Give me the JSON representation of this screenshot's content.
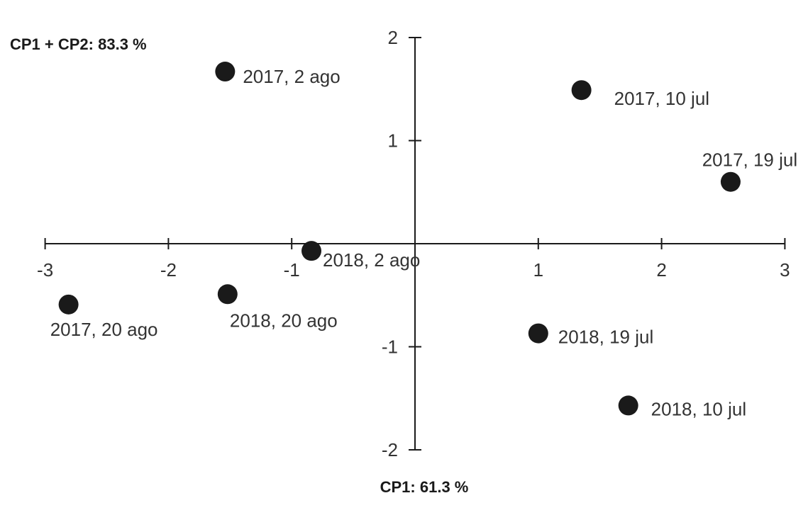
{
  "chart_data": {
    "type": "scatter",
    "title": "",
    "xlabel": "CP1: 61.3 %",
    "ylabel": "CP1 + CP2: 83.3 %",
    "xlim": [
      -3,
      3
    ],
    "ylim": [
      -2,
      2
    ],
    "x_ticks": [
      "-3",
      "-2",
      "-1",
      "1",
      "2",
      "3"
    ],
    "y_ticks": [
      "2",
      "1",
      "-1",
      "-2"
    ],
    "grid": false,
    "legend": "none",
    "point_color": "#1a1a1a",
    "points": [
      {
        "label": "2017, 2 ago",
        "x": -1.54,
        "y": 1.67
      },
      {
        "label": "2017, 10 jul",
        "x": 1.35,
        "y": 1.49
      },
      {
        "label": "2017, 19 jul",
        "x": 2.56,
        "y": 0.6
      },
      {
        "label": "2018, 2 ago",
        "x": -0.84,
        "y": -0.07
      },
      {
        "label": "2017, 20 ago",
        "x": -2.81,
        "y": -0.59
      },
      {
        "label": "2018, 20 ago",
        "x": -1.52,
        "y": -0.49
      },
      {
        "label": "2018, 19 jul",
        "x": 1.0,
        "y": -0.87
      },
      {
        "label": "2018, 10 jul",
        "x": 1.73,
        "y": -1.57
      }
    ]
  }
}
